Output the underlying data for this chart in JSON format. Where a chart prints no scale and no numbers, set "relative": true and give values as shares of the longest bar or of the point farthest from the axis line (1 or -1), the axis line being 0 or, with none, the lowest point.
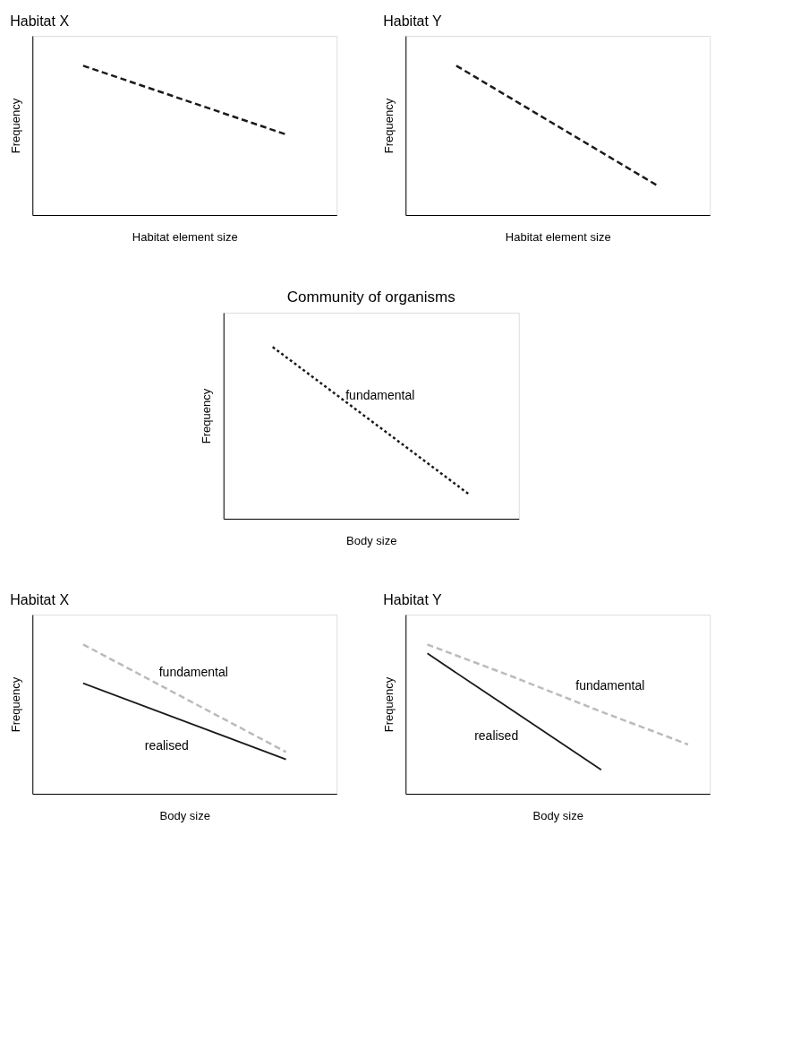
{
  "chart_data": [
    {
      "type": "line",
      "title": "Habitat X",
      "xlabel": "Habitat element size",
      "ylabel": "Frequency",
      "relative": true,
      "tick_labels": false,
      "categories": [
        null,
        null
      ],
      "series": [
        {
          "color": "#1a1a1a",
          "line_style": "dashed",
          "values": [
            1,
            0.54
          ]
        }
      ]
    },
    {
      "type": "line",
      "title": "Habitat Y",
      "xlabel": "Habitat element size",
      "ylabel": "Frequency",
      "relative": true,
      "tick_labels": false,
      "categories": [
        null,
        null
      ],
      "series": [
        {
          "color": "#1a1a1a",
          "line_style": "dashed",
          "values": [
            1,
            0.19
          ]
        }
      ]
    },
    {
      "type": "line",
      "title": "Community of organisms",
      "xlabel": "Body size",
      "ylabel": "Frequency",
      "relative": true,
      "tick_labels": false,
      "categories": [
        null,
        null
      ],
      "series": [
        {
          "name": "fundamental",
          "color": "#1a1a1a",
          "line_style": "dotted",
          "values": [
            1,
            0.14
          ]
        }
      ]
    },
    {
      "type": "line",
      "title": "Habitat X",
      "xlabel": "Body size",
      "ylabel": "Frequency",
      "relative": true,
      "tick_labels": false,
      "categories": [
        null,
        null
      ],
      "series": [
        {
          "name": "fundamental",
          "color": "#bbbbbb",
          "line_style": "dashed",
          "values": [
            1,
            0.28
          ]
        },
        {
          "name": "realised",
          "color": "#1a1a1a",
          "line_style": "solid",
          "values": [
            0.74,
            0.23
          ]
        }
      ]
    },
    {
      "type": "line",
      "title": "Habitat Y",
      "xlabel": "Body size",
      "ylabel": "Frequency",
      "relative": true,
      "tick_labels": false,
      "categories": [
        null,
        null,
        null,
        null
      ],
      "series": [
        {
          "name": "fundamental",
          "color": "#bbbbbb",
          "line_style": "dashed",
          "values": [
            1,
            0.78,
            0.55,
            0.33
          ]
        },
        {
          "name": "realised",
          "color": "#1a1a1a",
          "line_style": "solid",
          "values": [
            0.94,
            0.55,
            0.16,
            null
          ]
        }
      ]
    }
  ]
}
